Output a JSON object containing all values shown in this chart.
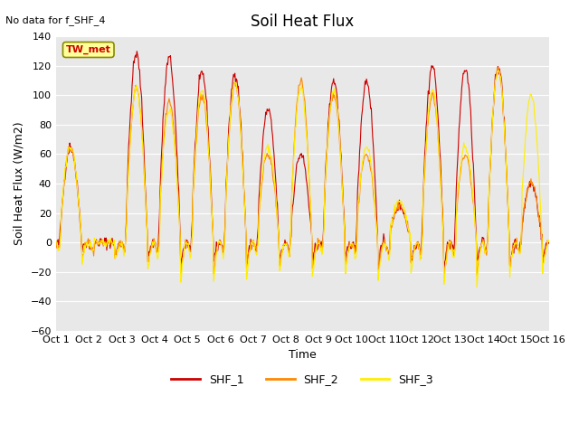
{
  "title": "Soil Heat Flux",
  "top_left_text": "No data for f_SHF_4",
  "ylabel": "Soil Heat Flux (W/m2)",
  "xlabel": "Time",
  "station_label": "TW_met",
  "ylim": [
    -60,
    140
  ],
  "yticks": [
    -60,
    -40,
    -20,
    0,
    20,
    40,
    60,
    80,
    100,
    120,
    140
  ],
  "xtick_labels": [
    "Oct 1",
    "Oct 2",
    "Oct 3",
    "Oct 4",
    "Oct 5",
    "Oct 6",
    "Oct 7",
    "Oct 8",
    "Oct 9",
    "Oct 10",
    "Oct 11",
    "Oct 12",
    "Oct 13",
    "Oct 14",
    "Oct 15",
    "Oct 16"
  ],
  "colors": {
    "SHF_1": "#cc0000",
    "SHF_2": "#ff8800",
    "SHF_3": "#ffee00",
    "background": "#e8e8e8",
    "station_box_face": "#ffff99",
    "station_box_edge": "#888800"
  },
  "legend": [
    {
      "label": "SHF_1",
      "color": "#cc0000"
    },
    {
      "label": "SHF_2",
      "color": "#ff8800"
    },
    {
      "label": "SHF_3",
      "color": "#ffee00"
    }
  ],
  "n_days": 15,
  "pts_per_day": 48,
  "seed": 42
}
